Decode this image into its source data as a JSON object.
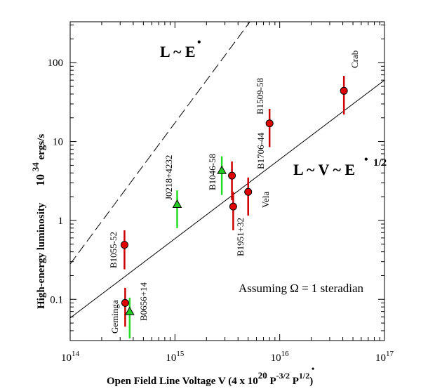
{
  "chart_data": {
    "type": "scatter",
    "title": "",
    "xlabel": "Open Field Line Voltage V  (4 x 10",
    "xlabel_sup1": "20",
    "xlabel_mid": " P",
    "xlabel_sup2": "-3/2",
    "xlabel_mid2": " P",
    "xlabel_dot": "•",
    "xlabel_sup3": "1/2",
    "xlabel_end": ")",
    "ylabel": "High-energy luminosity",
    "yunit_base": "10",
    "yunit_sup": "34",
    "yunit_rest": " ergs/s",
    "xscale": "log",
    "yscale": "log",
    "xlim": [
      100000000000000.0,
      1e+17
    ],
    "ylim": [
      0.03,
      330
    ],
    "x_ticks": [
      {
        "value": 100000000000000.0,
        "base": "10",
        "exp": "14"
      },
      {
        "value": 1000000000000000.0,
        "base": "10",
        "exp": "15"
      },
      {
        "value": 1e+16,
        "base": "10",
        "exp": "16"
      },
      {
        "value": 1e+17,
        "base": "10",
        "exp": "17"
      }
    ],
    "y_ticks": [
      {
        "value": 0.1,
        "label": "0.1"
      },
      {
        "value": 1,
        "label": "1"
      },
      {
        "value": 10,
        "label": "10"
      },
      {
        "value": 100,
        "label": "100"
      }
    ],
    "annotations": {
      "steep_label": "L ~ E",
      "steep_dot": "•",
      "shallow_label": "L ~ V ~ E",
      "shallow_dot": "•",
      "shallow_sup": "1/2",
      "assumption": "Assuming Ω = 1 steradian"
    },
    "lines": [
      {
        "name": "L ~ E (dashed)",
        "style": "dashed",
        "points": [
          [
            100000000000000.0,
            0.28
          ],
          [
            5200000000000000.0,
            330
          ]
        ]
      },
      {
        "name": "L ~ V ~ E^1/2 (solid)",
        "style": "solid",
        "points": [
          [
            100000000000000.0,
            0.058
          ],
          [
            1e+17,
            60
          ]
        ]
      }
    ],
    "series": [
      {
        "name": "circle",
        "marker": "circle",
        "color": "#e00000",
        "bar_color": "#cc0000",
        "points": [
          {
            "label": "Crab",
            "x": 4.1e+16,
            "y": 44,
            "ylo": 22,
            "yhi": 68
          },
          {
            "label": "B1509-58",
            "x": 8000000000000000.0,
            "y": 17,
            "ylo": 8.5,
            "yhi": 26
          },
          {
            "label": "B1706-44",
            "x": 3500000000000000.0,
            "y": 3.7,
            "ylo": 1.8,
            "yhi": 5.6
          },
          {
            "label": "B1951+32",
            "x": 3600000000000000.0,
            "y": 1.5,
            "ylo": 0.75,
            "yhi": 2.3
          },
          {
            "label": "Vela",
            "x": 5000000000000000.0,
            "y": 2.3,
            "ylo": 1.15,
            "yhi": 3.5
          },
          {
            "label": "B1055-52",
            "x": 330000000000000.0,
            "y": 0.49,
            "ylo": 0.24,
            "yhi": 0.75
          },
          {
            "label": "Geminga",
            "x": 335000000000000.0,
            "y": 0.09,
            "ylo": 0.045,
            "yhi": 0.14
          }
        ]
      },
      {
        "name": "triangle",
        "marker": "triangle",
        "color": "#22cc22",
        "bar_color": "#22dd22",
        "points": [
          {
            "label": "B1046-58",
            "x": 2800000000000000.0,
            "y": 4.3,
            "ylo": 2.1,
            "yhi": 6.5
          },
          {
            "label": "J0218+4232",
            "x": 1050000000000000.0,
            "y": 1.6,
            "ylo": 0.8,
            "yhi": 2.4
          },
          {
            "label": "B0656+14",
            "x": 370000000000000.0,
            "y": 0.07,
            "ylo": 0.032,
            "yhi": 0.105
          }
        ]
      }
    ]
  }
}
